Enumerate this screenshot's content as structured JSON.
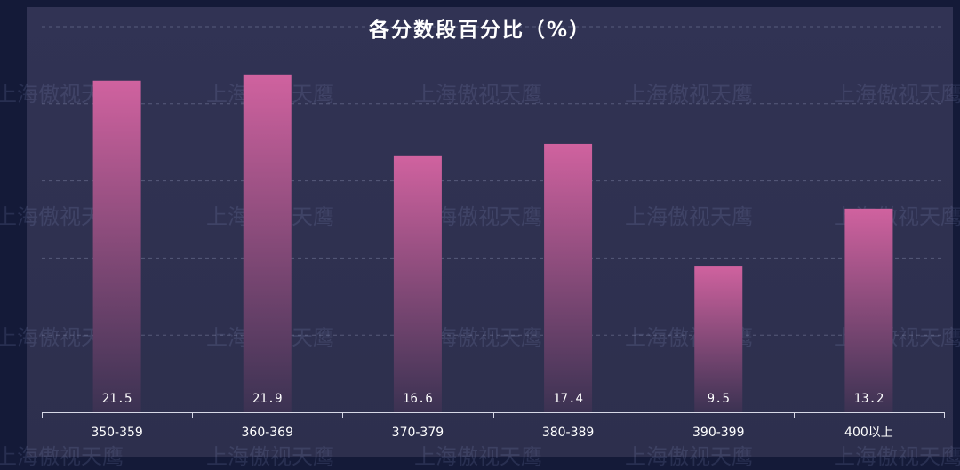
{
  "chart_data": {
    "type": "bar",
    "title": "各分数段百分比（%）",
    "categories": [
      "350-359",
      "360-369",
      "370-379",
      "380-389",
      "390-399",
      "400以上"
    ],
    "values": [
      21.5,
      21.9,
      16.6,
      17.4,
      9.5,
      13.2
    ],
    "value_labels": [
      "21.5",
      "21.9",
      "16.6",
      "17.4",
      "9.5",
      "13.2"
    ],
    "ylim": [
      0,
      25
    ],
    "grid": true,
    "grid_style": "dashed",
    "bar_color_top": "#d0629f",
    "bar_color_bottom": "#3b3252",
    "xlabel": "",
    "ylabel": ""
  },
  "watermark": {
    "text": "上海傲视天鹰"
  },
  "colors": {
    "page_background": "#141a38",
    "panel_background": "#303252",
    "title_color": "#ffffff",
    "axis_color": "#d6d8e6",
    "label_color": "#ffffff"
  }
}
